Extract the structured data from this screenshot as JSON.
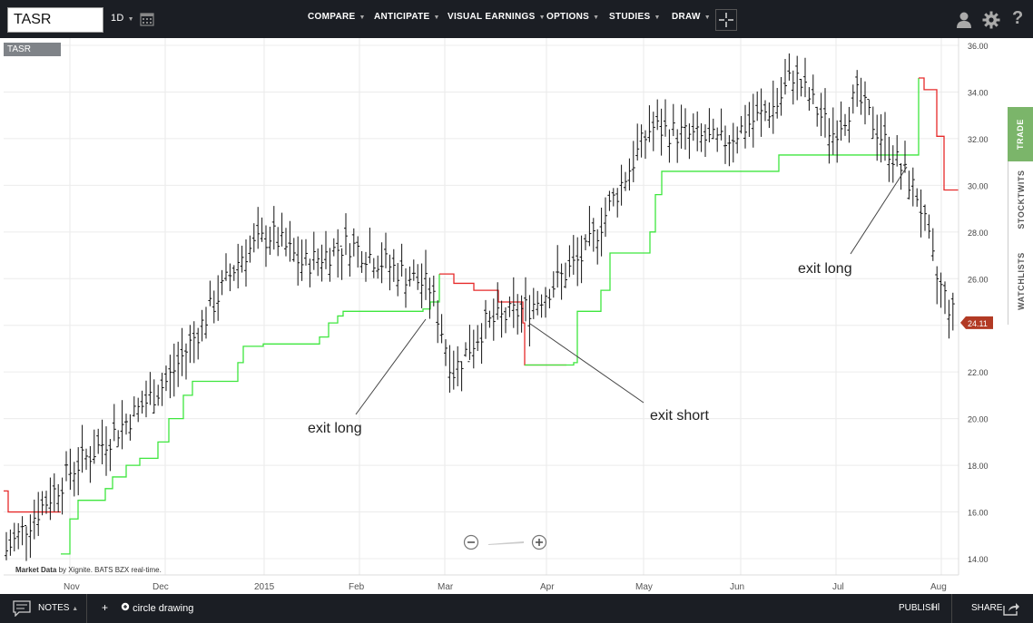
{
  "symbol": {
    "input_value": "TASR",
    "tag": "TASR"
  },
  "toolbar": {
    "interval": "1D",
    "menus": [
      "COMPARE",
      "ANTICIPATE",
      "VISUAL EARNINGS",
      "OPTIONS",
      "STUDIES",
      "DRAW"
    ]
  },
  "side_tabs": {
    "trade": "TRADE",
    "stocktwits": "STOCKTWITS",
    "watchlists": "WATCHLISTS"
  },
  "chart": {
    "y_ticks": [
      "36.00",
      "34.00",
      "32.00",
      "30.00",
      "28.00",
      "26.00",
      "24.00",
      "22.00",
      "20.00",
      "18.00",
      "16.00",
      "14.00"
    ],
    "x_ticks": [
      "Nov",
      "Dec",
      "2015",
      "Feb",
      "Mar",
      "Apr",
      "May",
      "Jun",
      "Jul",
      "Aug"
    ],
    "last_price": "24.11",
    "annotations": {
      "a1": "exit long",
      "a2": "exit short",
      "a3": "exit long"
    },
    "market_data": {
      "prefix": "Market Data",
      "suffix": "by Xignite. BATS BZX real-time."
    },
    "colors": {
      "stop_long": "#3ee63e",
      "stop_short": "#e62a2a",
      "price_bar": "#111111",
      "last_price_badge": "#b23a24"
    }
  },
  "chart_data": {
    "type": "bar",
    "description_series": [
      "price bars (daily OHLC)",
      "trailing stop long (green)",
      "trailing stop short (red)"
    ],
    "ylim": [
      13.5,
      36.3
    ],
    "x": [
      "Nov",
      "Dec",
      "2015",
      "Feb",
      "Mar",
      "Apr",
      "May",
      "Jun",
      "Jul",
      "Aug"
    ],
    "close_path": [
      [
        "Oct start",
        14.2
      ],
      [
        "Nov",
        17.8
      ],
      [
        "Nov mid",
        19.3
      ],
      [
        "Dec",
        21.6
      ],
      [
        "Dec mid",
        23.8
      ],
      [
        "2015",
        27.0
      ],
      [
        "Jan mid",
        27.9
      ],
      [
        "Feb",
        26.6
      ],
      [
        "Feb mid",
        27.5
      ],
      [
        "Feb end",
        25.6
      ],
      [
        "Mar",
        22.0
      ],
      [
        "Mar mid",
        24.0
      ],
      [
        "Apr",
        24.8
      ],
      [
        "Apr mid",
        27.0
      ],
      [
        "May",
        32.5
      ],
      [
        "May mid",
        31.8
      ],
      [
        "Jun",
        33.5
      ],
      [
        "Jun mid",
        34.8
      ],
      [
        "Jul",
        32.2
      ],
      [
        "Jul mid",
        33.8
      ],
      [
        "Jul end",
        29.5
      ],
      [
        "Aug",
        26.0
      ],
      [
        "Aug last",
        24.11
      ]
    ],
    "stop_long_levels": [
      14.2,
      16.5,
      17.5,
      18.5,
      20.8,
      22.6,
      23.2,
      24.2,
      24.8,
      26.0
    ],
    "stop_short_levels": [
      16.9,
      16.0,
      25.8,
      25.0,
      22.3
    ],
    "stop_long_levels_2": [
      22.3,
      24.5,
      27.2,
      30.6,
      31.3
    ],
    "stop_short_levels_2": [
      34.5,
      34.1,
      32.0,
      29.8
    ]
  },
  "bottom": {
    "notes": "NOTES",
    "circle_drawing": "circle drawing",
    "publish": "PUBLISH",
    "share": "SHARE"
  }
}
